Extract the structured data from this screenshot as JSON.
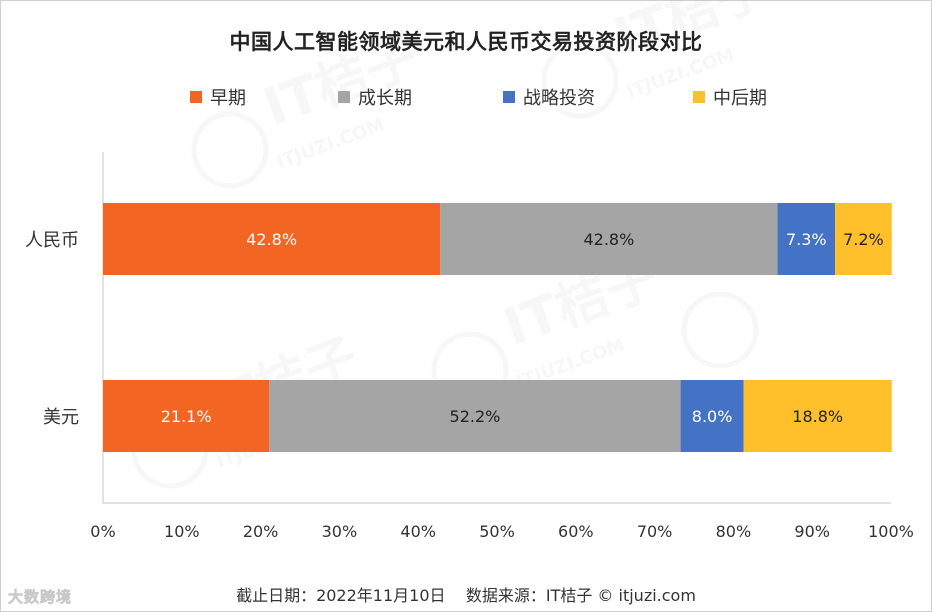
{
  "header": {
    "title": "中国人工智能领域美元和人民币交易投资阶段对比"
  },
  "footer": {
    "text": "截止日期：2022年11月10日    数据来源：IT桔子 © itjuzi.com",
    "corner_mark": "大数跨境"
  },
  "watermark": {
    "brand": "IT桔子",
    "site": "ITJUZI.COM"
  },
  "colors": {
    "early": "#F26522",
    "growth": "#A5A5A5",
    "strategic": "#4472C4",
    "late": "#FFC02C",
    "axis": "#d9d9d9"
  },
  "chart_data": {
    "type": "bar",
    "orientation": "horizontal",
    "stacked": true,
    "percent_stacked": true,
    "title": "中国人工智能领域美元和人民币交易投资阶段对比",
    "categories": [
      "人民币",
      "美元"
    ],
    "series": [
      {
        "name": "早期",
        "values": [
          42.8,
          21.1
        ],
        "labels": [
          "42.8%",
          "21.1%"
        ],
        "color": "#F26522"
      },
      {
        "name": "成长期",
        "values": [
          42.8,
          52.2
        ],
        "labels": [
          "42.8%",
          "52.2%"
        ],
        "color": "#A5A5A5"
      },
      {
        "name": "战略投资",
        "values": [
          7.3,
          8.0
        ],
        "labels": [
          "7.3%",
          "8.0%"
        ],
        "color": "#4472C4"
      },
      {
        "name": "中后期",
        "values": [
          7.2,
          18.8
        ],
        "labels": [
          "7.2%",
          "18.8%"
        ],
        "color": "#FFC02C"
      }
    ],
    "xlim": [
      0,
      100
    ],
    "x_ticks": [
      "0%",
      "10%",
      "20%",
      "30%",
      "40%",
      "50%",
      "60%",
      "70%",
      "80%",
      "90%",
      "100%"
    ],
    "legend_position": "top",
    "grid": false
  }
}
